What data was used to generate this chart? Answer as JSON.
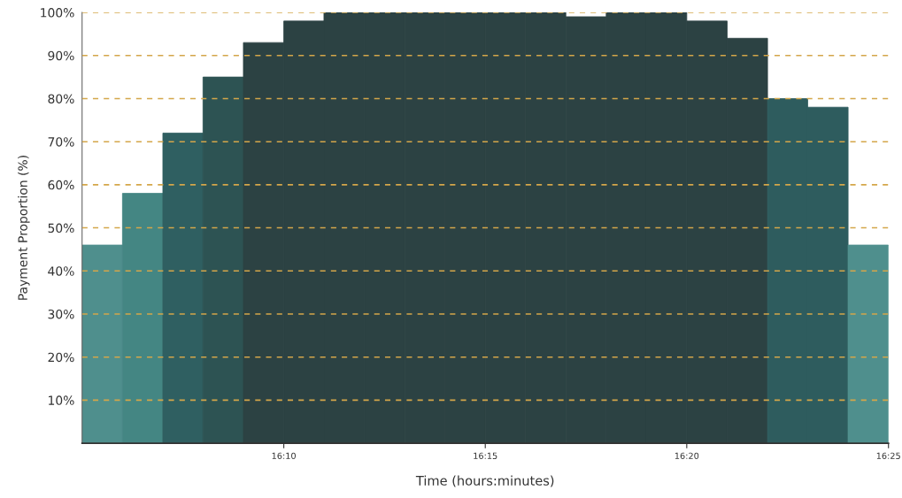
{
  "chart_data": {
    "type": "histogram",
    "xlabel": "Time (hours:minutes)",
    "ylabel": "Payment Proportion (%)",
    "bins": [
      16.0833,
      16.1,
      16.1167,
      16.1333,
      16.15,
      16.1667,
      16.1833,
      16.2,
      16.2167,
      16.2333,
      16.25,
      16.2667,
      16.2833,
      16.3,
      16.3167,
      16.3333,
      16.35,
      16.3667,
      16.3833,
      16.4,
      16.4167
    ],
    "values": [
      46,
      58,
      72,
      85,
      93,
      98,
      100,
      100,
      100,
      100,
      100,
      100,
      99,
      100,
      100,
      98,
      94,
      80,
      78,
      46
    ],
    "colors": [
      "#4f8f8d",
      "#448683",
      "#2f5f61",
      "#2d5353",
      "#2c4243",
      "#2c4243",
      "#2c4243",
      "#2c4243",
      "#2c4243",
      "#2c4243",
      "#2c4243",
      "#2c4243",
      "#2c4243",
      "#2c4243",
      "#2c4243",
      "#2c4243",
      "#2c4243",
      "#2e5c5e",
      "#2e5c5e",
      "#4f8f8d"
    ],
    "xlim": [
      16.0833,
      16.4167
    ],
    "xticks": [
      {
        "value": 16.1667,
        "label": "16:10"
      },
      {
        "value": 16.25,
        "label": "16:15"
      },
      {
        "value": 16.3333,
        "label": "16:20"
      },
      {
        "value": 16.4167,
        "label": "16:25"
      }
    ],
    "ylim": [
      0,
      100
    ],
    "yticks": [
      {
        "value": 10,
        "label": "10%"
      },
      {
        "value": 20,
        "label": "20%"
      },
      {
        "value": 30,
        "label": "30%"
      },
      {
        "value": 40,
        "label": "40%"
      },
      {
        "value": 50,
        "label": "50%"
      },
      {
        "value": 60,
        "label": "60%"
      },
      {
        "value": 70,
        "label": "70%"
      },
      {
        "value": 80,
        "label": "80%"
      },
      {
        "value": 90,
        "label": "90%"
      },
      {
        "value": 100,
        "label": "100%"
      }
    ],
    "grid": "y",
    "line_style": "dashed",
    "legend": false
  }
}
